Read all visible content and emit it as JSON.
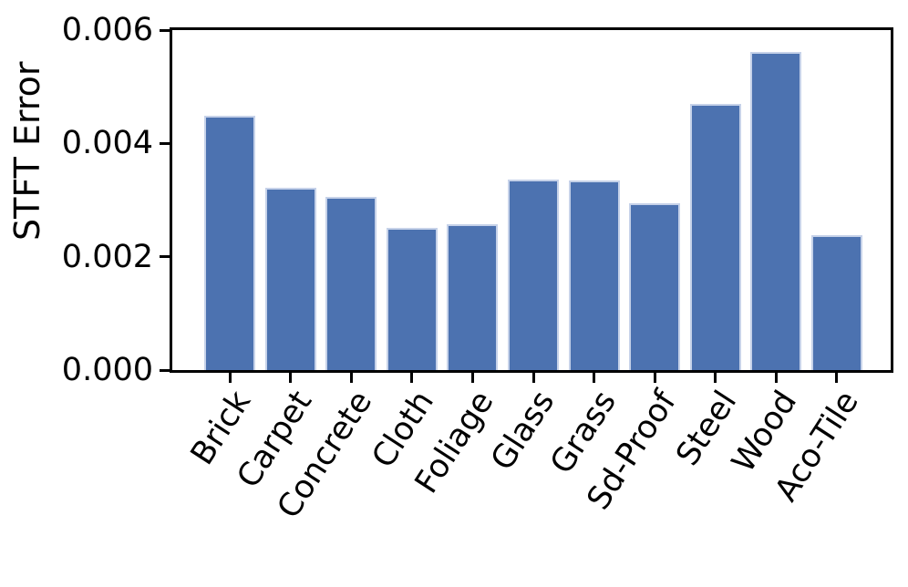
{
  "chart_data": {
    "type": "bar",
    "title": "",
    "xlabel": "",
    "ylabel": "STFT Error",
    "categories": [
      "Brick",
      "Carpet",
      "Concrete",
      "Cloth",
      "Foliage",
      "Glass",
      "Grass",
      "Sd-Proof",
      "Steel",
      "Wood",
      "Aco-Tile"
    ],
    "values": [
      0.00448,
      0.00322,
      0.00305,
      0.00251,
      0.00257,
      0.00336,
      0.00334,
      0.00294,
      0.0047,
      0.00562,
      0.00238
    ],
    "ylim": [
      0,
      0.006
    ],
    "yticks": [
      0.0,
      0.002,
      0.004,
      0.006
    ],
    "ytick_labels": [
      "0.000",
      "0.002",
      "0.004",
      "0.006"
    ],
    "xtick_rotation_deg": 57,
    "grid": false,
    "legend": null,
    "colors": {
      "bar_fill": "#4c72b0",
      "bar_edge": "#c6d2e9",
      "axis": "#000000",
      "text": "#000000",
      "background": "#ffffff"
    }
  }
}
